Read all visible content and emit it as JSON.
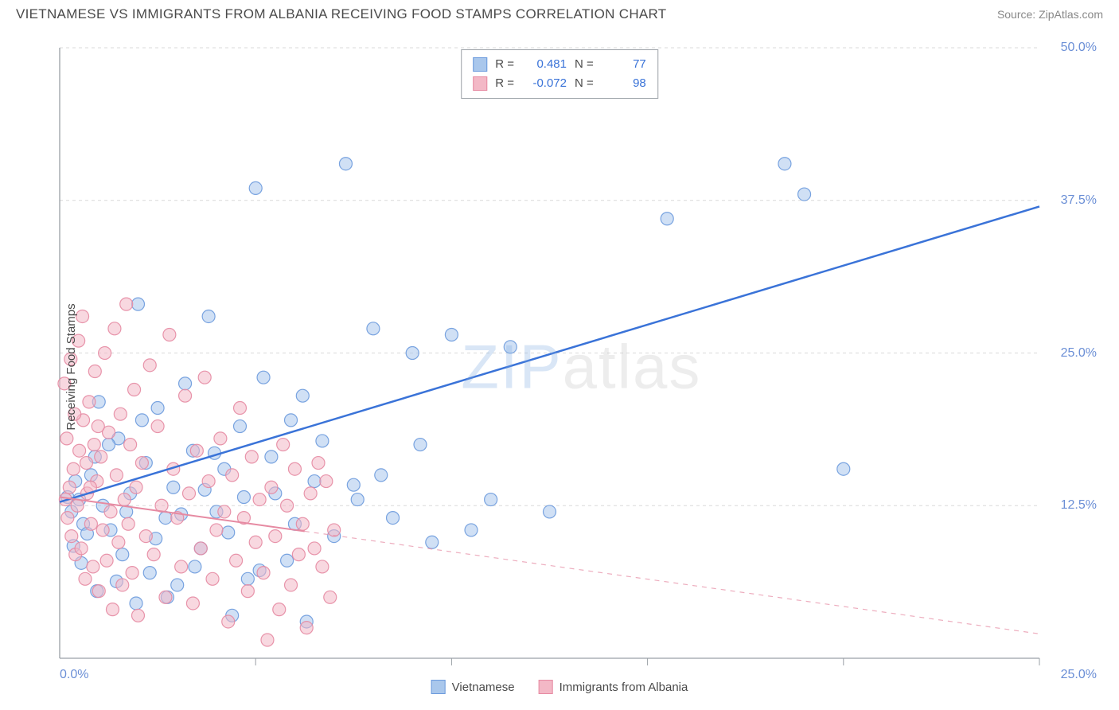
{
  "title": "VIETNAMESE VS IMMIGRANTS FROM ALBANIA RECEIVING FOOD STAMPS CORRELATION CHART",
  "source_label": "Source: ",
  "source_name": "ZipAtlas.com",
  "watermark_zip": "ZIP",
  "watermark_atlas": "atlas",
  "ylabel": "Receiving Food Stamps",
  "legend": {
    "series1_label": "Vietnamese",
    "series2_label": "Immigrants from Albania"
  },
  "stats": {
    "r_label": "R =",
    "n_label": "N =",
    "series1": {
      "r": "0.481",
      "n": "77"
    },
    "series2": {
      "r": "-0.072",
      "n": "98"
    }
  },
  "chart": {
    "type": "scatter",
    "xlim": [
      0,
      25
    ],
    "ylim": [
      0,
      50
    ],
    "xtick_step": 5,
    "ytick_labels": [
      "50.0%",
      "37.5%",
      "25.0%",
      "12.5%"
    ],
    "ytick_values": [
      50,
      37.5,
      25,
      12.5
    ],
    "x_origin_label": "0.0%",
    "x_end_label": "25.0%",
    "grid_color": "#d9d9d9",
    "axis_color": "#9aa0a6",
    "background": "#ffffff",
    "marker_radius": 8,
    "marker_opacity": 0.55,
    "series1": {
      "fill": "#a9c7ec",
      "stroke": "#6b9add",
      "line_color": "#3a73d8",
      "line_width": 2.5,
      "trend_start": [
        0,
        12.8
      ],
      "trend_end": [
        25,
        37.0
      ],
      "points": [
        [
          0.3,
          12.0
        ],
        [
          0.4,
          14.5
        ],
        [
          0.5,
          13.0
        ],
        [
          0.6,
          11.0
        ],
        [
          0.8,
          15.0
        ],
        [
          0.9,
          16.5
        ],
        [
          1.0,
          21.0
        ],
        [
          1.1,
          12.5
        ],
        [
          1.3,
          10.5
        ],
        [
          1.5,
          18.0
        ],
        [
          1.6,
          8.5
        ],
        [
          1.8,
          13.5
        ],
        [
          2.0,
          29.0
        ],
        [
          2.1,
          19.5
        ],
        [
          2.3,
          7.0
        ],
        [
          2.5,
          20.5
        ],
        [
          2.7,
          11.5
        ],
        [
          2.9,
          14.0
        ],
        [
          3.0,
          6.0
        ],
        [
          3.2,
          22.5
        ],
        [
          3.4,
          17.0
        ],
        [
          3.6,
          9.0
        ],
        [
          3.8,
          28.0
        ],
        [
          4.0,
          12.0
        ],
        [
          4.2,
          15.5
        ],
        [
          4.4,
          3.5
        ],
        [
          4.6,
          19.0
        ],
        [
          4.8,
          6.5
        ],
        [
          5.0,
          38.5
        ],
        [
          5.2,
          23.0
        ],
        [
          5.5,
          13.5
        ],
        [
          5.8,
          8.0
        ],
        [
          6.0,
          11.0
        ],
        [
          6.3,
          3.0
        ],
        [
          6.5,
          14.5
        ],
        [
          7.0,
          10.0
        ],
        [
          7.3,
          40.5
        ],
        [
          7.6,
          13.0
        ],
        [
          8.0,
          27.0
        ],
        [
          8.5,
          11.5
        ],
        [
          9.0,
          25.0
        ],
        [
          9.5,
          9.5
        ],
        [
          10.0,
          26.5
        ],
        [
          11.0,
          13.0
        ],
        [
          11.5,
          25.5
        ],
        [
          12.5,
          12.0
        ],
        [
          15.5,
          36.0
        ],
        [
          18.5,
          40.5
        ],
        [
          19.0,
          38.0
        ],
        [
          20.0,
          15.5
        ],
        [
          0.2,
          13.2
        ],
        [
          0.35,
          9.2
        ],
        [
          0.55,
          7.8
        ],
        [
          0.7,
          10.2
        ],
        [
          0.95,
          5.5
        ],
        [
          1.25,
          17.5
        ],
        [
          1.45,
          6.3
        ],
        [
          1.7,
          12.0
        ],
        [
          1.95,
          4.5
        ],
        [
          2.2,
          16.0
        ],
        [
          2.45,
          9.8
        ],
        [
          2.75,
          5.0
        ],
        [
          3.1,
          11.8
        ],
        [
          3.45,
          7.5
        ],
        [
          3.7,
          13.8
        ],
        [
          3.95,
          16.8
        ],
        [
          4.3,
          10.3
        ],
        [
          4.7,
          13.2
        ],
        [
          5.1,
          7.2
        ],
        [
          5.4,
          16.5
        ],
        [
          5.9,
          19.5
        ],
        [
          6.2,
          21.5
        ],
        [
          6.7,
          17.8
        ],
        [
          7.5,
          14.2
        ],
        [
          8.2,
          15.0
        ],
        [
          9.2,
          17.5
        ],
        [
          10.5,
          10.5
        ]
      ]
    },
    "series2": {
      "fill": "#f3b8c6",
      "stroke": "#e68aa2",
      "line_color": "#e68aa2",
      "line_width": 2,
      "trend_start": [
        0,
        13.2
      ],
      "trend_end": [
        25,
        2.0
      ],
      "solid_portion": 0.25,
      "points": [
        [
          0.15,
          13.0
        ],
        [
          0.2,
          11.5
        ],
        [
          0.25,
          14.0
        ],
        [
          0.3,
          10.0
        ],
        [
          0.35,
          15.5
        ],
        [
          0.4,
          8.5
        ],
        [
          0.45,
          12.5
        ],
        [
          0.5,
          17.0
        ],
        [
          0.55,
          9.0
        ],
        [
          0.6,
          19.5
        ],
        [
          0.65,
          6.5
        ],
        [
          0.7,
          13.5
        ],
        [
          0.75,
          21.0
        ],
        [
          0.8,
          11.0
        ],
        [
          0.85,
          7.5
        ],
        [
          0.9,
          23.5
        ],
        [
          0.95,
          14.5
        ],
        [
          1.0,
          5.5
        ],
        [
          1.05,
          16.5
        ],
        [
          1.1,
          10.5
        ],
        [
          1.15,
          25.0
        ],
        [
          1.2,
          8.0
        ],
        [
          1.25,
          18.5
        ],
        [
          1.3,
          12.0
        ],
        [
          1.35,
          4.0
        ],
        [
          1.4,
          27.0
        ],
        [
          1.45,
          15.0
        ],
        [
          1.5,
          9.5
        ],
        [
          1.55,
          20.0
        ],
        [
          1.6,
          6.0
        ],
        [
          1.65,
          13.0
        ],
        [
          1.7,
          29.0
        ],
        [
          1.75,
          11.0
        ],
        [
          1.8,
          17.5
        ],
        [
          1.85,
          7.0
        ],
        [
          1.9,
          22.0
        ],
        [
          1.95,
          14.0
        ],
        [
          2.0,
          3.5
        ],
        [
          2.1,
          16.0
        ],
        [
          2.2,
          10.0
        ],
        [
          2.3,
          24.0
        ],
        [
          2.4,
          8.5
        ],
        [
          2.5,
          19.0
        ],
        [
          2.6,
          12.5
        ],
        [
          2.7,
          5.0
        ],
        [
          2.8,
          26.5
        ],
        [
          2.9,
          15.5
        ],
        [
          3.0,
          11.5
        ],
        [
          3.1,
          7.5
        ],
        [
          3.2,
          21.5
        ],
        [
          3.3,
          13.5
        ],
        [
          3.4,
          4.5
        ],
        [
          3.5,
          17.0
        ],
        [
          3.6,
          9.0
        ],
        [
          3.7,
          23.0
        ],
        [
          3.8,
          14.5
        ],
        [
          3.9,
          6.5
        ],
        [
          4.0,
          10.5
        ],
        [
          4.1,
          18.0
        ],
        [
          4.2,
          12.0
        ],
        [
          4.3,
          3.0
        ],
        [
          4.4,
          15.0
        ],
        [
          4.5,
          8.0
        ],
        [
          4.6,
          20.5
        ],
        [
          4.7,
          11.5
        ],
        [
          4.8,
          5.5
        ],
        [
          4.9,
          16.5
        ],
        [
          5.0,
          9.5
        ],
        [
          5.1,
          13.0
        ],
        [
          5.2,
          7.0
        ],
        [
          5.3,
          1.5
        ],
        [
          5.4,
          14.0
        ],
        [
          5.5,
          10.0
        ],
        [
          5.6,
          4.0
        ],
        [
          5.7,
          17.5
        ],
        [
          5.8,
          12.5
        ],
        [
          5.9,
          6.0
        ],
        [
          6.0,
          15.5
        ],
        [
          6.1,
          8.5
        ],
        [
          6.2,
          11.0
        ],
        [
          6.3,
          2.5
        ],
        [
          6.4,
          13.5
        ],
        [
          6.5,
          9.0
        ],
        [
          6.6,
          16.0
        ],
        [
          6.7,
          7.5
        ],
        [
          6.8,
          14.5
        ],
        [
          6.9,
          5.0
        ],
        [
          7.0,
          10.5
        ],
        [
          0.12,
          22.5
        ],
        [
          0.18,
          18.0
        ],
        [
          0.28,
          24.5
        ],
        [
          0.38,
          20.0
        ],
        [
          0.48,
          26.0
        ],
        [
          0.58,
          28.0
        ],
        [
          0.68,
          16.0
        ],
        [
          0.78,
          14.0
        ],
        [
          0.88,
          17.5
        ],
        [
          0.98,
          19.0
        ]
      ]
    }
  }
}
